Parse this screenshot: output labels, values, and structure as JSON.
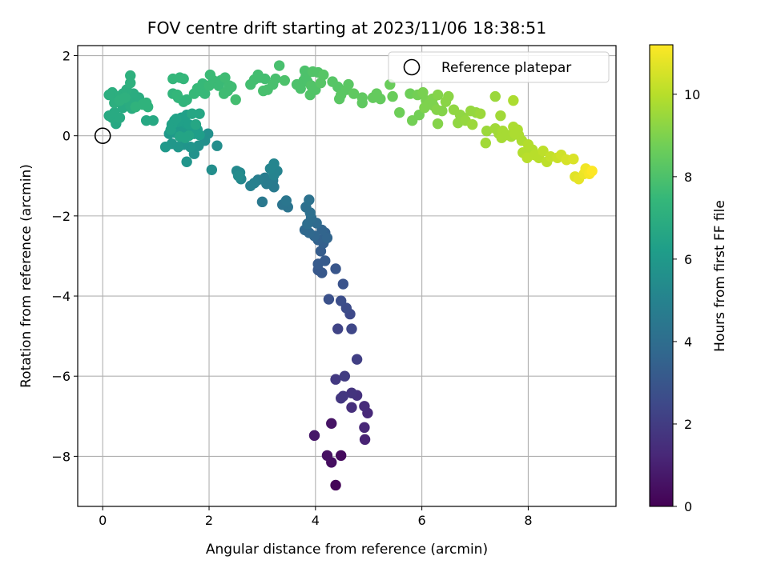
{
  "chart_data": {
    "type": "scatter",
    "title": "FOV centre drift starting at 2023/11/06 18:38:51",
    "xlabel": "Angular distance from reference (arcmin)",
    "ylabel": "Rotation from reference (arcmin)",
    "xlim": [
      -0.47,
      9.65
    ],
    "ylim": [
      -9.25,
      2.25
    ],
    "x_ticks": [
      0,
      2,
      4,
      6,
      8
    ],
    "y_ticks": [
      -8,
      -6,
      -4,
      -2,
      0,
      2
    ],
    "x_tick_labels": [
      "0",
      "2",
      "4",
      "6",
      "8"
    ],
    "y_tick_labels": [
      "−8",
      "−6",
      "−4",
      "−2",
      "0",
      "2"
    ],
    "grid": true,
    "colormap": "viridis",
    "reference_point": {
      "x": 0,
      "y": 0
    },
    "legend": {
      "position": "top-right",
      "label": "Reference platepar"
    },
    "colorbar": {
      "label": "Hours from first FF file",
      "range": [
        0,
        11.2
      ],
      "ticks": [
        0,
        2,
        4,
        6,
        8,
        10
      ],
      "tick_labels": [
        "0",
        "2",
        "4",
        "6",
        "8",
        "10"
      ]
    },
    "points": [
      [
        4.38,
        -8.72,
        0.1
      ],
      [
        4.48,
        -7.98,
        0.3
      ],
      [
        4.3,
        -8.15,
        0.4
      ],
      [
        4.22,
        -7.98,
        0.5
      ],
      [
        4.3,
        -7.18,
        0.6
      ],
      [
        3.98,
        -7.48,
        0.7
      ],
      [
        4.93,
        -7.58,
        1.1
      ],
      [
        4.92,
        -7.28,
        1.2
      ],
      [
        4.98,
        -6.92,
        1.3
      ],
      [
        4.92,
        -6.75,
        1.4
      ],
      [
        4.68,
        -6.78,
        1.5
      ],
      [
        4.78,
        -6.48,
        1.6
      ],
      [
        4.68,
        -6.42,
        1.7
      ],
      [
        4.48,
        -6.55,
        1.8
      ],
      [
        4.52,
        -6.5,
        1.8
      ],
      [
        4.38,
        -6.08,
        1.9
      ],
      [
        4.55,
        -6.0,
        2.0
      ],
      [
        4.78,
        -5.58,
        2.1
      ],
      [
        4.42,
        -4.82,
        2.3
      ],
      [
        4.68,
        -4.82,
        2.4
      ],
      [
        4.65,
        -4.45,
        2.5
      ],
      [
        4.58,
        -4.3,
        2.6
      ],
      [
        4.48,
        -4.12,
        2.7
      ],
      [
        4.25,
        -4.08,
        2.8
      ],
      [
        4.52,
        -3.7,
        2.9
      ],
      [
        4.38,
        -3.32,
        3.0
      ],
      [
        4.12,
        -3.42,
        3.1
      ],
      [
        4.05,
        -3.35,
        3.1
      ],
      [
        4.05,
        -3.2,
        3.2
      ],
      [
        4.18,
        -3.12,
        3.2
      ],
      [
        4.1,
        -2.88,
        3.3
      ],
      [
        4.15,
        -2.68,
        3.4
      ],
      [
        4.05,
        -2.6,
        3.5
      ],
      [
        4.18,
        -2.42,
        3.5
      ],
      [
        4.22,
        -2.55,
        3.6
      ],
      [
        4.12,
        -2.35,
        3.6
      ],
      [
        3.98,
        -2.5,
        3.7
      ],
      [
        3.88,
        -2.42,
        3.8
      ],
      [
        3.8,
        -2.35,
        3.8
      ],
      [
        4.02,
        -2.18,
        3.9
      ],
      [
        3.85,
        -2.2,
        4.0
      ],
      [
        3.92,
        -2.05,
        4.0
      ],
      [
        3.9,
        -1.92,
        4.1
      ],
      [
        3.82,
        -1.78,
        4.1
      ],
      [
        3.88,
        -1.6,
        4.2
      ],
      [
        3.48,
        -1.78,
        4.3
      ],
      [
        3.38,
        -1.72,
        4.3
      ],
      [
        3.45,
        -1.62,
        4.4
      ],
      [
        3.0,
        -1.65,
        4.5
      ],
      [
        3.22,
        -1.28,
        4.6
      ],
      [
        3.2,
        -1.12,
        4.6
      ],
      [
        3.05,
        -1.05,
        4.7
      ],
      [
        3.08,
        -1.2,
        4.7
      ],
      [
        2.92,
        -1.1,
        4.8
      ],
      [
        2.85,
        -1.18,
        4.9
      ],
      [
        2.78,
        -1.25,
        4.9
      ],
      [
        3.22,
        -0.98,
        5.0
      ],
      [
        3.28,
        -0.88,
        5.0
      ],
      [
        3.15,
        -0.82,
        5.1
      ],
      [
        3.22,
        -0.7,
        5.1
      ],
      [
        2.6,
        -1.08,
        5.2
      ],
      [
        2.52,
        -0.88,
        5.3
      ],
      [
        2.58,
        -0.92,
        5.3
      ],
      [
        2.55,
        -1.0,
        5.4
      ],
      [
        2.15,
        -0.25,
        5.5
      ],
      [
        2.05,
        -0.85,
        5.5
      ],
      [
        1.98,
        0.05,
        5.6
      ],
      [
        1.92,
        -0.12,
        5.6
      ],
      [
        1.8,
        -0.25,
        5.7
      ],
      [
        1.72,
        -0.45,
        5.7
      ],
      [
        1.58,
        -0.65,
        5.8
      ],
      [
        1.65,
        -0.28,
        5.8
      ],
      [
        1.52,
        -0.22,
        5.8
      ],
      [
        1.42,
        -0.28,
        5.9
      ],
      [
        1.3,
        -0.2,
        5.9
      ],
      [
        1.18,
        -0.28,
        6.0
      ],
      [
        1.25,
        0.05,
        6.0
      ],
      [
        1.35,
        0.08,
        6.0
      ],
      [
        1.45,
        0.12,
        6.1
      ],
      [
        1.52,
        0.15,
        6.1
      ],
      [
        1.62,
        0.18,
        6.1
      ],
      [
        1.78,
        0.15,
        6.2
      ],
      [
        1.72,
        0.05,
        6.2
      ],
      [
        1.82,
        0.02,
        6.2
      ],
      [
        1.55,
        0.32,
        6.2
      ],
      [
        1.62,
        0.28,
        6.3
      ],
      [
        1.42,
        0.35,
        6.3
      ],
      [
        1.48,
        0.45,
        6.3
      ],
      [
        1.58,
        0.52,
        6.3
      ],
      [
        1.35,
        0.38,
        6.4
      ],
      [
        1.3,
        0.28,
        6.4
      ],
      [
        1.38,
        0.42,
        6.4
      ],
      [
        1.28,
        0.15,
        6.4
      ],
      [
        1.45,
        -0.02,
        6.5
      ],
      [
        1.55,
        -0.05,
        6.5
      ],
      [
        1.62,
        0.0,
        6.5
      ],
      [
        1.75,
        0.28,
        6.6
      ],
      [
        1.68,
        0.55,
        6.6
      ],
      [
        1.82,
        0.55,
        6.6
      ],
      [
        0.95,
        0.38,
        6.7
      ],
      [
        0.82,
        0.38,
        6.7
      ],
      [
        0.25,
        0.3,
        6.7
      ],
      [
        0.18,
        0.45,
        6.8
      ],
      [
        0.12,
        0.5,
        6.8
      ],
      [
        0.22,
        0.58,
        6.8
      ],
      [
        0.32,
        0.45,
        6.8
      ],
      [
        0.38,
        0.7,
        6.8
      ],
      [
        0.52,
        0.75,
        6.9
      ],
      [
        0.55,
        0.68,
        6.9
      ],
      [
        0.62,
        0.82,
        6.9
      ],
      [
        0.48,
        0.88,
        6.9
      ],
      [
        0.68,
        0.95,
        6.9
      ],
      [
        0.58,
        1.05,
        6.9
      ],
      [
        0.45,
        1.15,
        7.0
      ],
      [
        0.38,
        1.05,
        7.0
      ],
      [
        0.28,
        0.98,
        7.0
      ],
      [
        0.18,
        1.08,
        7.0
      ],
      [
        0.12,
        1.02,
        7.0
      ],
      [
        0.22,
        0.82,
        7.0
      ],
      [
        0.32,
        0.88,
        7.1
      ],
      [
        0.42,
        0.95,
        7.1
      ],
      [
        0.52,
        1.32,
        7.1
      ],
      [
        0.52,
        1.5,
        7.1
      ],
      [
        0.82,
        0.82,
        7.2
      ],
      [
        0.85,
        0.72,
        7.2
      ],
      [
        0.75,
        0.78,
        7.2
      ],
      [
        0.62,
        0.72,
        7.2
      ],
      [
        1.32,
        1.05,
        7.3
      ],
      [
        1.42,
        0.95,
        7.3
      ],
      [
        1.52,
        0.85,
        7.3
      ],
      [
        1.58,
        0.9,
        7.3
      ],
      [
        1.4,
        1.02,
        7.4
      ],
      [
        1.32,
        1.42,
        7.4
      ],
      [
        1.45,
        1.45,
        7.4
      ],
      [
        1.52,
        1.42,
        7.4
      ],
      [
        1.72,
        1.05,
        7.5
      ],
      [
        1.78,
        1.18,
        7.5
      ],
      [
        1.85,
        1.12,
        7.5
      ],
      [
        1.92,
        1.05,
        7.5
      ],
      [
        1.88,
        1.3,
        7.5
      ],
      [
        2.0,
        1.25,
        7.6
      ],
      [
        2.08,
        1.38,
        7.6
      ],
      [
        2.02,
        1.52,
        7.6
      ],
      [
        2.18,
        1.25,
        7.6
      ],
      [
        2.22,
        1.38,
        7.6
      ],
      [
        2.3,
        1.45,
        7.7
      ],
      [
        2.38,
        1.25,
        7.7
      ],
      [
        2.35,
        1.12,
        7.7
      ],
      [
        2.28,
        1.05,
        7.7
      ],
      [
        2.42,
        1.22,
        7.7
      ],
      [
        2.5,
        0.9,
        7.8
      ],
      [
        2.78,
        1.28,
        7.8
      ],
      [
        2.85,
        1.4,
        7.8
      ],
      [
        2.95,
        1.45,
        7.8
      ],
      [
        2.92,
        1.52,
        7.8
      ],
      [
        3.05,
        1.42,
        7.8
      ],
      [
        3.02,
        1.12,
        7.9
      ],
      [
        3.1,
        1.15,
        7.9
      ],
      [
        3.2,
        1.28,
        7.9
      ],
      [
        3.25,
        1.42,
        7.9
      ],
      [
        3.32,
        1.75,
        7.9
      ],
      [
        3.42,
        1.38,
        8.0
      ],
      [
        3.65,
        1.28,
        8.0
      ],
      [
        3.72,
        1.18,
        8.0
      ],
      [
        3.78,
        1.38,
        8.0
      ],
      [
        3.85,
        1.35,
        8.0
      ],
      [
        3.82,
        1.48,
        8.0
      ],
      [
        3.8,
        1.62,
        8.0
      ],
      [
        3.95,
        1.6,
        8.1
      ],
      [
        4.05,
        1.58,
        8.1
      ],
      [
        3.92,
        1.25,
        8.1
      ],
      [
        3.9,
        1.02,
        8.1
      ],
      [
        4.0,
        1.15,
        8.1
      ],
      [
        4.1,
        1.32,
        8.2
      ],
      [
        4.15,
        1.52,
        8.2
      ],
      [
        4.32,
        1.35,
        8.2
      ],
      [
        4.42,
        1.22,
        8.2
      ],
      [
        4.48,
        1.02,
        8.3
      ],
      [
        4.45,
        0.92,
        8.3
      ],
      [
        4.62,
        1.28,
        8.3
      ],
      [
        4.58,
        1.15,
        8.3
      ],
      [
        4.72,
        1.05,
        8.4
      ],
      [
        4.88,
        0.95,
        8.4
      ],
      [
        4.88,
        0.82,
        8.4
      ],
      [
        5.08,
        0.95,
        8.5
      ],
      [
        5.15,
        1.05,
        8.5
      ],
      [
        5.22,
        0.92,
        8.5
      ],
      [
        5.45,
        0.98,
        8.6
      ],
      [
        5.4,
        1.28,
        8.6
      ],
      [
        5.58,
        0.58,
        8.7
      ],
      [
        5.78,
        1.05,
        8.7
      ],
      [
        5.82,
        0.38,
        8.8
      ],
      [
        5.95,
        0.52,
        8.8
      ],
      [
        5.92,
        1.02,
        8.8
      ],
      [
        6.02,
        1.08,
        8.9
      ],
      [
        6.08,
        0.88,
        8.9
      ],
      [
        6.12,
        0.78,
        9.0
      ],
      [
        6.05,
        0.7,
        9.0
      ],
      [
        6.2,
        0.92,
        9.0
      ],
      [
        6.22,
        0.75,
        9.0
      ],
      [
        6.3,
        1.02,
        9.1
      ],
      [
        6.38,
        0.62,
        9.1
      ],
      [
        6.28,
        0.65,
        9.1
      ],
      [
        6.5,
        0.98,
        9.2
      ],
      [
        6.45,
        0.85,
        9.2
      ],
      [
        6.6,
        0.65,
        9.3
      ],
      [
        6.72,
        0.52,
        9.3
      ],
      [
        6.68,
        0.32,
        9.3
      ],
      [
        6.78,
        0.45,
        9.3
      ],
      [
        6.82,
        0.38,
        9.4
      ],
      [
        6.92,
        0.62,
        9.4
      ],
      [
        7.02,
        0.58,
        9.4
      ],
      [
        7.1,
        0.55,
        9.5
      ],
      [
        6.95,
        0.28,
        9.5
      ],
      [
        7.22,
        0.12,
        9.5
      ],
      [
        7.2,
        -0.18,
        9.6
      ],
      [
        7.38,
        0.18,
        9.6
      ],
      [
        7.45,
        0.05,
        9.6
      ],
      [
        7.52,
        0.12,
        9.7
      ],
      [
        7.5,
        -0.05,
        9.7
      ],
      [
        7.6,
        0.02,
        9.7
      ],
      [
        7.68,
        -0.02,
        9.7
      ],
      [
        7.72,
        0.22,
        9.8
      ],
      [
        7.8,
        0.15,
        9.8
      ],
      [
        7.82,
        0.02,
        9.8
      ],
      [
        7.75,
        0.05,
        9.8
      ],
      [
        7.88,
        -0.12,
        9.8
      ],
      [
        7.9,
        -0.42,
        9.9
      ],
      [
        8.0,
        -0.22,
        9.9
      ],
      [
        8.08,
        -0.35,
        9.9
      ],
      [
        7.98,
        -0.55,
        10.0
      ],
      [
        8.12,
        -0.48,
        10.0
      ],
      [
        8.2,
        -0.55,
        10.0
      ],
      [
        8.28,
        -0.38,
        10.1
      ],
      [
        8.35,
        -0.65,
        10.1
      ],
      [
        8.42,
        -0.52,
        10.2
      ],
      [
        8.55,
        -0.55,
        10.3
      ],
      [
        8.62,
        -0.48,
        10.4
      ],
      [
        8.72,
        -0.6,
        10.5
      ],
      [
        8.85,
        -0.58,
        10.6
      ],
      [
        8.88,
        -1.02,
        10.7
      ],
      [
        8.95,
        -1.08,
        10.8
      ],
      [
        9.05,
        -0.95,
        10.9
      ],
      [
        9.08,
        -0.82,
        11.0
      ],
      [
        9.15,
        -0.95,
        11.1
      ],
      [
        9.2,
        -0.88,
        11.2
      ],
      [
        7.38,
        0.98,
        9.5
      ],
      [
        7.72,
        0.88,
        9.8
      ],
      [
        7.48,
        0.5,
        9.6
      ],
      [
        6.3,
        0.3,
        9.1
      ]
    ]
  }
}
